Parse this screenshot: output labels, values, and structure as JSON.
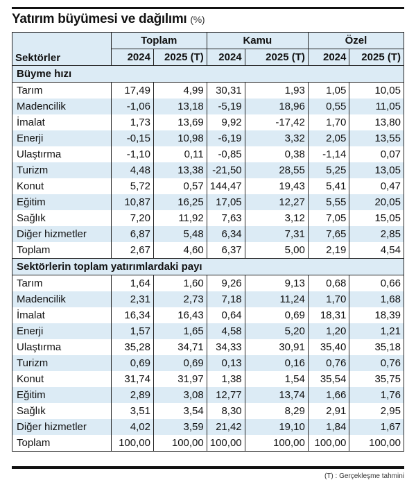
{
  "title": "Yatırım büyümesi ve dağılımı",
  "unit": "(%)",
  "header": {
    "row_label": "Sektörler",
    "groups": [
      "Toplam",
      "Kamu",
      "Özel"
    ],
    "years": [
      "2024",
      "2025 (T)",
      "2024",
      "2025 (T)",
      "2024",
      "2025 (T)"
    ]
  },
  "sections": [
    {
      "title": "Büyme hızı",
      "rows": [
        {
          "label": "Tarım",
          "values": [
            "17,49",
            "4,99",
            "30,31",
            "1,93",
            "1,05",
            "10,05"
          ]
        },
        {
          "label": "Madencilik",
          "values": [
            "-1,06",
            "13,18",
            "-5,19",
            "18,96",
            "0,55",
            "11,05"
          ]
        },
        {
          "label": "İmalat",
          "values": [
            "1,73",
            "13,69",
            "9,92",
            "-17,42",
            "1,70",
            "13,80"
          ]
        },
        {
          "label": "Enerji",
          "values": [
            "-0,15",
            "10,98",
            "-6,19",
            "3,32",
            "2,05",
            "13,55"
          ]
        },
        {
          "label": "Ulaştırma",
          "values": [
            "-1,10",
            "0,11",
            "-0,85",
            "0,38",
            "-1,14",
            "0,07"
          ]
        },
        {
          "label": "Turizm",
          "values": [
            "4,48",
            "13,38",
            "-21,50",
            "28,55",
            "5,25",
            "13,05"
          ]
        },
        {
          "label": "Konut",
          "values": [
            "5,72",
            "0,57",
            "144,47",
            "19,43",
            "5,41",
            "0,47"
          ]
        },
        {
          "label": "Eğitim",
          "values": [
            "10,87",
            "16,25",
            "17,05",
            "12,27",
            "5,55",
            "20,05"
          ]
        },
        {
          "label": "Sağlık",
          "values": [
            "7,20",
            "11,92",
            "7,63",
            "3,12",
            "7,05",
            "15,05"
          ]
        },
        {
          "label": "Diğer hizmetler",
          "values": [
            "6,87",
            "5,48",
            "6,34",
            "7,31",
            "7,65",
            "2,85"
          ]
        },
        {
          "label": "Toplam",
          "values": [
            "2,67",
            "4,60",
            "6,37",
            "5,00",
            "2,19",
            "4,54"
          ]
        }
      ]
    },
    {
      "title": "Sektörlerin toplam yatırımlardaki payı",
      "rows": [
        {
          "label": "Tarım",
          "values": [
            "1,64",
            "1,60",
            "9,26",
            "9,13",
            "0,68",
            "0,66"
          ]
        },
        {
          "label": "Madencilik",
          "values": [
            "2,31",
            "2,73",
            "7,18",
            "11,24",
            "1,70",
            "1,68"
          ]
        },
        {
          "label": "İmalat",
          "values": [
            "16,34",
            "16,43",
            "0,64",
            "0,69",
            "18,31",
            "18,39"
          ]
        },
        {
          "label": "Enerji",
          "values": [
            "1,57",
            "1,65",
            "4,58",
            "5,20",
            "1,20",
            "1,21"
          ]
        },
        {
          "label": "Ulaştırma",
          "values": [
            "35,28",
            "34,71",
            "34,33",
            "30,91",
            "35,40",
            "35,18"
          ]
        },
        {
          "label": "Turizm",
          "values": [
            "0,69",
            "0,69",
            "0,13",
            "0,16",
            "0,76",
            "0,76"
          ]
        },
        {
          "label": "Konut",
          "values": [
            "31,74",
            "31,97",
            "1,38",
            "1,54",
            "35,54",
            "35,75"
          ]
        },
        {
          "label": "Eğitim",
          "values": [
            "2,89",
            "3,08",
            "12,77",
            "13,74",
            "1,66",
            "1,76"
          ]
        },
        {
          "label": "Sağlık",
          "values": [
            "3,51",
            "3,54",
            "8,30",
            "8,29",
            "2,91",
            "2,95"
          ]
        },
        {
          "label": "Diğer hizmetler",
          "values": [
            "4,02",
            "3,59",
            "21,42",
            "19,10",
            "1,84",
            "1,67"
          ]
        },
        {
          "label": "Toplam",
          "values": [
            "100,00",
            "100,00",
            "100,00",
            "100,00",
            "100,00",
            "100,00"
          ]
        }
      ]
    }
  ],
  "footnote": "(T) : Gerçekleşme tahmini",
  "colors": {
    "header_bg": "#dcebf5",
    "stripe": "#dcebf5",
    "rule": "#111111"
  }
}
